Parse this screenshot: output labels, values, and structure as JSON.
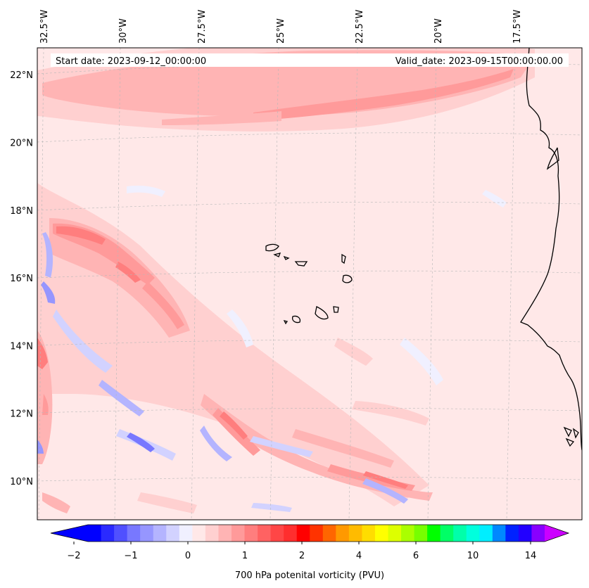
{
  "header": {
    "start_date": "Start date: 2023-09-12_00:00:00",
    "valid_date": "Valid_date: 2023-09-15T00:00:00.00"
  },
  "chart_data": {
    "type": "heatmap",
    "field": "700 hPa potenital vorticity (PVU)",
    "projection": "lambert conformal",
    "lon_range": [
      -33,
      -15.2
    ],
    "lat_range": [
      9,
      22.8
    ],
    "lon_ticks": [
      {
        "value": -32.5,
        "label": "32.5°W"
      },
      {
        "value": -30.0,
        "label": "30°W"
      },
      {
        "value": -27.5,
        "label": "27.5°W"
      },
      {
        "value": -25.0,
        "label": "25°W"
      },
      {
        "value": -22.5,
        "label": "22.5°W"
      },
      {
        "value": -20.0,
        "label": "20°W"
      },
      {
        "value": -17.5,
        "label": "17.5°W"
      }
    ],
    "lat_ticks": [
      {
        "value": 10,
        "label": "10°N"
      },
      {
        "value": 12,
        "label": "12°N"
      },
      {
        "value": 14,
        "label": "14°N"
      },
      {
        "value": 16,
        "label": "16°N"
      },
      {
        "value": 18,
        "label": "18°N"
      },
      {
        "value": 20,
        "label": "20°N"
      },
      {
        "value": 22,
        "label": "22°N"
      }
    ],
    "colorbar": {
      "label": "700 hPa potenital vorticity (PVU)",
      "extend": "both",
      "tick_values": [
        -2,
        -1,
        0,
        1,
        2,
        4,
        6,
        10,
        14
      ],
      "tick_labels": [
        "−2",
        "−1",
        "0",
        "1",
        "2",
        "4",
        "6",
        "10",
        "14"
      ],
      "under_color": "#0000ff",
      "over_color": "#cc00ff",
      "colors": [
        "#0000ff",
        "#2a2aff",
        "#5050ff",
        "#7878ff",
        "#9696ff",
        "#b4b4ff",
        "#d2d2ff",
        "#f0f0ff",
        "#ffe8e8",
        "#ffd0d0",
        "#ffb4b4",
        "#ff9a9a",
        "#ff7e7e",
        "#ff6262",
        "#ff4646",
        "#ff2e2e",
        "#ff0000",
        "#ff3300",
        "#ff6600",
        "#ff9900",
        "#ffbb00",
        "#ffdd00",
        "#ffff00",
        "#ddff00",
        "#aaff00",
        "#77ff00",
        "#00ff00",
        "#00ff66",
        "#00ffaa",
        "#00ffdd",
        "#00eeff",
        "#0088ff",
        "#0022ff",
        "#2200ff",
        "#8800ff"
      ]
    },
    "features": [
      {
        "name": "subtropical PV band",
        "lat": 21.5,
        "lon": [
          -31,
          -17
        ],
        "max_pvu": 0.8
      },
      {
        "name": "trough PV streamers",
        "lat": [
          10,
          17
        ],
        "lon": [
          -33,
          -20
        ],
        "max_pvu": 1.5
      },
      {
        "name": "negative PV filaments",
        "lat": [
          10,
          16
        ],
        "lon": [
          -33,
          -21
        ],
        "min_pvu": -1.3
      }
    ],
    "background_pvu": 0.1,
    "coastlines": [
      "Cape Verde islands",
      "West Africa coast"
    ]
  }
}
